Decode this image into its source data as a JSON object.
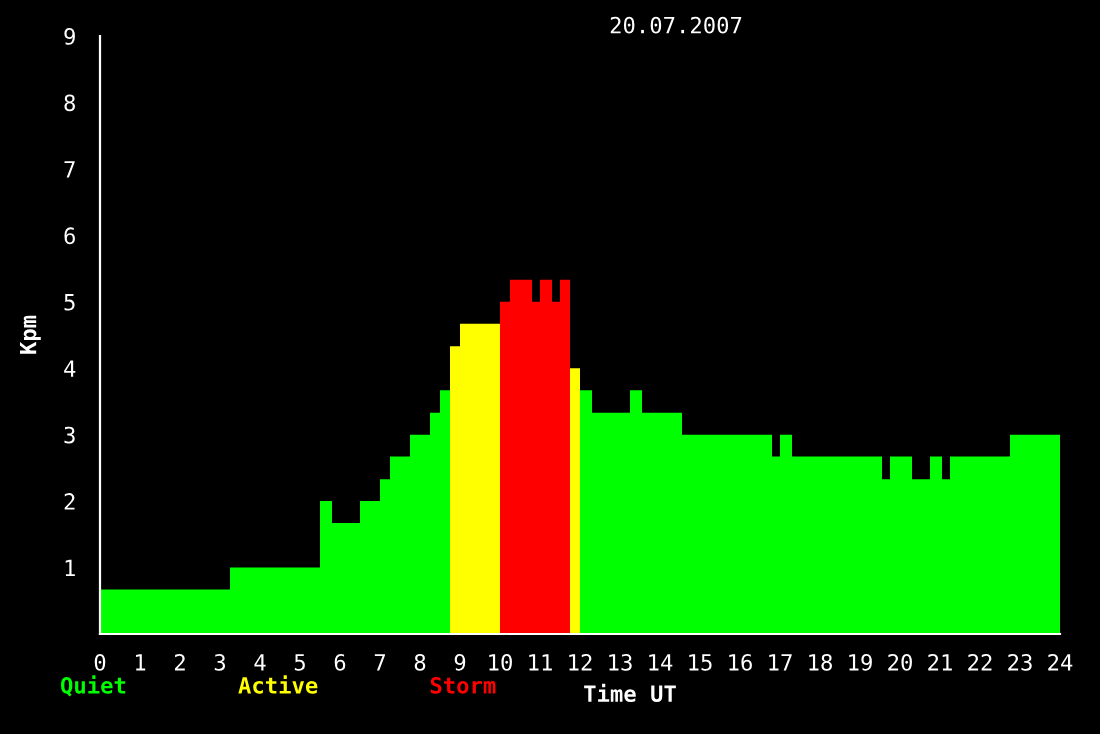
{
  "chart_data": {
    "type": "histogram",
    "title": "20.07.2007",
    "xlabel": "Time UT",
    "ylabel": "Kpm",
    "bins": [
      0,
      3.25,
      5.5,
      5.8,
      6.5,
      7.0,
      7.25,
      7.75,
      8.25,
      8.5,
      8.75,
      9.0,
      10.0,
      10.25,
      10.8,
      11.0,
      11.3,
      11.5,
      11.75,
      12.0,
      12.3,
      13.25,
      13.55,
      14.55,
      16.8,
      17.0,
      17.3,
      19.55,
      19.75,
      20.3,
      20.75,
      21.05,
      21.25,
      22.75,
      24
    ],
    "series": [
      {
        "name": "Quiet",
        "color": "#00ff00",
        "values": [
          0.67,
          1.0,
          2.0,
          1.67,
          2.0,
          2.33,
          2.67,
          3.0,
          3.33,
          3.67,
          null,
          null,
          null,
          null,
          null,
          null,
          null,
          null,
          null,
          3.67,
          3.33,
          3.67,
          3.33,
          3.0,
          2.67,
          3.0,
          2.67,
          2.33,
          2.67,
          2.33,
          2.67,
          2.33,
          2.67,
          3.0
        ]
      },
      {
        "name": "Active",
        "color": "#ffff00",
        "values": [
          null,
          null,
          null,
          null,
          null,
          null,
          null,
          null,
          null,
          null,
          4.33,
          4.67,
          null,
          null,
          null,
          null,
          null,
          null,
          4.0,
          null,
          null,
          null,
          null,
          null,
          null,
          null,
          null,
          null,
          null,
          null,
          null,
          null,
          null,
          null
        ]
      },
      {
        "name": "Storm",
        "color": "#ff0000",
        "values": [
          null,
          null,
          null,
          null,
          null,
          null,
          null,
          null,
          null,
          null,
          null,
          null,
          5.0,
          5.33,
          5.0,
          5.33,
          5.0,
          5.33,
          null,
          null,
          null,
          null,
          null,
          null,
          null,
          null,
          null,
          null,
          null,
          null,
          null,
          null,
          null,
          null
        ]
      }
    ],
    "xlim": [
      0,
      24
    ],
    "xticks": [
      0,
      1,
      2,
      3,
      4,
      5,
      6,
      7,
      8,
      9,
      10,
      11,
      12,
      13,
      14,
      15,
      16,
      17,
      18,
      19,
      20,
      21,
      22,
      23,
      24
    ],
    "ylim": [
      0,
      9
    ],
    "yticks": [
      1,
      2,
      3,
      4,
      5,
      6,
      7,
      8,
      9
    ],
    "grid": false,
    "legend": "bottom left"
  }
}
